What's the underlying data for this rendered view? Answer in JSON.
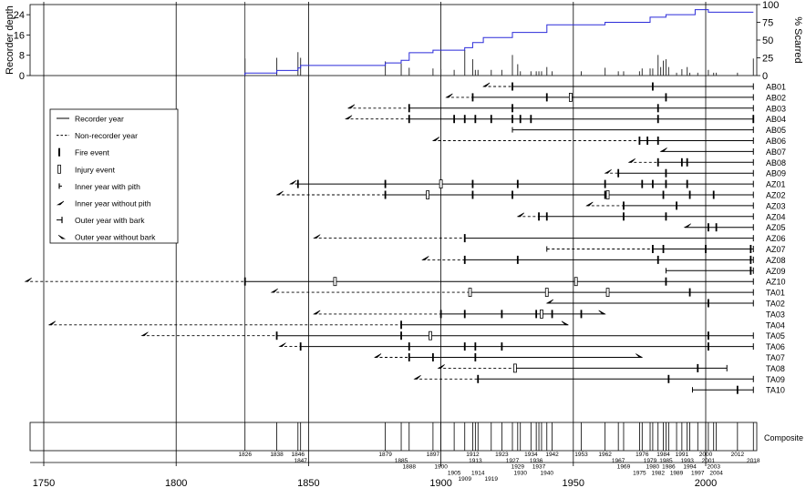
{
  "chart_data": {
    "type": "fire-history",
    "x_range": [
      1743,
      2020
    ],
    "x_ticks": [
      1750,
      1800,
      1850,
      1900,
      1950,
      2000
    ],
    "top_panel": {
      "ylabel_left": "Recorder depth",
      "ylabel_right": "% Scarred",
      "left_ticks": [
        0,
        8,
        16,
        24
      ],
      "left_range": [
        0,
        28
      ],
      "right_ticks": [
        0,
        25,
        50,
        75,
        100
      ],
      "right_range": [
        0,
        100
      ],
      "depth_steps": [
        [
          1826,
          0
        ],
        [
          1826,
          1
        ],
        [
          1838,
          1
        ],
        [
          1838,
          2
        ],
        [
          1846,
          2
        ],
        [
          1846,
          3
        ],
        [
          1847,
          3
        ],
        [
          1847,
          4
        ],
        [
          1879,
          4
        ],
        [
          1879,
          5
        ],
        [
          1885,
          5
        ],
        [
          1885,
          6
        ],
        [
          1888,
          6
        ],
        [
          1888,
          9
        ],
        [
          1897,
          9
        ],
        [
          1897,
          10
        ],
        [
          1909,
          10
        ],
        [
          1909,
          11
        ],
        [
          1912,
          11
        ],
        [
          1912,
          13
        ],
        [
          1916,
          13
        ],
        [
          1916,
          15
        ],
        [
          1927,
          15
        ],
        [
          1927,
          17
        ],
        [
          1940,
          17
        ],
        [
          1940,
          20
        ],
        [
          1962,
          20
        ],
        [
          1962,
          21
        ],
        [
          1979,
          21
        ],
        [
          1979,
          23
        ],
        [
          1985,
          23
        ],
        [
          1985,
          24
        ],
        [
          1996,
          24
        ],
        [
          1996,
          26
        ],
        [
          2001,
          26
        ],
        [
          2001,
          25
        ],
        [
          2018,
          25
        ]
      ],
      "scar_bars": [
        [
          1826,
          24
        ],
        [
          1838,
          25
        ],
        [
          1846,
          33
        ],
        [
          1847,
          25
        ],
        [
          1879,
          20
        ],
        [
          1885,
          17
        ],
        [
          1888,
          11
        ],
        [
          1897,
          10
        ],
        [
          1900,
          9
        ],
        [
          1905,
          8
        ],
        [
          1909,
          36
        ],
        [
          1912,
          23
        ],
        [
          1913,
          8
        ],
        [
          1914,
          8
        ],
        [
          1919,
          8
        ],
        [
          1923,
          8
        ],
        [
          1927,
          29
        ],
        [
          1929,
          16
        ],
        [
          1930,
          6
        ],
        [
          1934,
          6
        ],
        [
          1936,
          6
        ],
        [
          1937,
          6
        ],
        [
          1938,
          6
        ],
        [
          1940,
          12
        ],
        [
          1942,
          6
        ],
        [
          1953,
          6
        ],
        [
          1962,
          11
        ],
        [
          1967,
          6
        ],
        [
          1969,
          6
        ],
        [
          1975,
          6
        ],
        [
          1976,
          10
        ],
        [
          1979,
          10
        ],
        [
          1980,
          10
        ],
        [
          1982,
          29
        ],
        [
          1983,
          12
        ],
        [
          1984,
          21
        ],
        [
          1985,
          23
        ],
        [
          1986,
          12
        ],
        [
          1989,
          4
        ],
        [
          1991,
          9
        ],
        [
          1993,
          12
        ],
        [
          1994,
          4
        ],
        [
          1997,
          4
        ],
        [
          2000,
          23
        ],
        [
          2001,
          8
        ],
        [
          2003,
          4
        ],
        [
          2004,
          4
        ],
        [
          2012,
          4
        ],
        [
          2018,
          24
        ]
      ]
    },
    "legend": [
      {
        "label": "Recorder year",
        "symbol": "solid-line"
      },
      {
        "label": "Non-recorder year",
        "symbol": "dashed-line"
      },
      {
        "label": "Fire event",
        "symbol": "fire-bar"
      },
      {
        "label": "Injury event",
        "symbol": "injury-box"
      },
      {
        "label": "Inner year with pith",
        "symbol": "pith-tick"
      },
      {
        "label": "Inner year without pith",
        "symbol": "inner-arrow"
      },
      {
        "label": "Outer year with bark",
        "symbol": "bark-tick"
      },
      {
        "label": "Outer year without bark",
        "symbol": "outer-arrow"
      }
    ],
    "series": [
      {
        "name": "AB01",
        "first": 1916,
        "first_type": "inner-arrow",
        "rec_start": 1927,
        "last": 2018,
        "last_type": "bark",
        "fires": [
          1927,
          1980
        ],
        "injuries": []
      },
      {
        "name": "AB02",
        "first": 1902,
        "first_type": "inner-arrow",
        "rec_start": 1912,
        "last": 2018,
        "last_type": "bark",
        "fires": [
          1912,
          1940,
          1985
        ],
        "injuries": [
          1949
        ]
      },
      {
        "name": "AB03",
        "first": 1865,
        "first_type": "inner-arrow",
        "rec_start": 1888,
        "last": 2018,
        "last_type": "bark",
        "fires": [
          1888,
          1927,
          1982
        ],
        "injuries": []
      },
      {
        "name": "AB04",
        "first": 1864,
        "first_type": "inner-arrow",
        "rec_start": 1888,
        "last": 2018,
        "last_type": "bark",
        "fires": [
          1888,
          1905,
          1909,
          1913,
          1919,
          1927,
          1930,
          1934,
          1982,
          2018
        ],
        "injuries": []
      },
      {
        "name": "AB05",
        "first": 1927,
        "first_type": "pith",
        "rec_start": 1927,
        "last": 2018,
        "last_type": "bark",
        "fires": [],
        "injuries": []
      },
      {
        "name": "AB06",
        "first": 1897,
        "first_type": "inner-arrow",
        "rec_start": 1975,
        "last": 2018,
        "last_type": "bark",
        "fires": [
          1975,
          1978,
          1982
        ],
        "injuries": []
      },
      {
        "name": "AB07",
        "first": 1983,
        "first_type": "inner-arrow",
        "rec_start": 1983,
        "last": 2018,
        "last_type": "bark",
        "fires": [],
        "injuries": []
      },
      {
        "name": "AB08",
        "first": 1971,
        "first_type": "inner-arrow",
        "rec_start": 1982,
        "last": 2018,
        "last_type": "bark",
        "fires": [
          1982,
          1991,
          1993
        ],
        "injuries": []
      },
      {
        "name": "AB09",
        "first": 1962,
        "first_type": "inner-arrow",
        "rec_start": 1967,
        "last": 2018,
        "last_type": "bark",
        "fires": [
          1967,
          1985
        ],
        "injuries": []
      },
      {
        "name": "AZ01",
        "first": 1843,
        "first_type": "inner-arrow",
        "rec_start": 1846,
        "last": 2018,
        "last_type": "bark",
        "fires": [
          1846,
          1879,
          1912,
          1929,
          1962,
          1976,
          1980,
          1985,
          1993
        ],
        "injuries": [
          1900
        ]
      },
      {
        "name": "AZ02",
        "first": 1838,
        "first_type": "inner-arrow",
        "rec_start": 1879,
        "last": 2018,
        "last_type": "bark",
        "fires": [
          1879,
          1912,
          1927,
          1962,
          1984,
          1994,
          2003
        ],
        "injuries": [
          1895,
          1963
        ]
      },
      {
        "name": "AZ03",
        "first": 1955,
        "first_type": "inner-arrow",
        "rec_start": 1969,
        "last": 2018,
        "last_type": "bark",
        "fires": [
          1969,
          1989
        ],
        "injuries": []
      },
      {
        "name": "AZ04",
        "first": 1929,
        "first_type": "inner-arrow",
        "rec_start": 1937,
        "last": 2018,
        "last_type": "bark",
        "fires": [
          1937,
          1940,
          1969,
          1985
        ],
        "injuries": []
      },
      {
        "name": "AZ05",
        "first": 1992,
        "first_type": "inner-arrow",
        "rec_start": 1992,
        "last": 2018,
        "last_type": "bark",
        "fires": [
          2001,
          2004
        ],
        "injuries": []
      },
      {
        "name": "AZ06",
        "first": 1852,
        "first_type": "inner-arrow",
        "rec_start": 1909,
        "last": 2018,
        "last_type": "bark",
        "fires": [
          1909
        ],
        "injuries": []
      },
      {
        "name": "AZ07",
        "first": 1940,
        "first_type": "pith",
        "rec_start": 1980,
        "last": 2018,
        "last_type": "bark",
        "fires": [
          1980,
          1984,
          2000,
          2017
        ],
        "injuries": []
      },
      {
        "name": "AZ08",
        "first": 1893,
        "first_type": "inner-arrow",
        "rec_start": 1909,
        "last": 2018,
        "last_type": "bark",
        "fires": [
          1909,
          1929,
          1982,
          2017
        ],
        "injuries": []
      },
      {
        "name": "AZ09",
        "first": 1985,
        "first_type": "pith",
        "rec_start": 1985,
        "last": 2018,
        "last_type": "bark",
        "fires": [
          2017
        ],
        "injuries": []
      },
      {
        "name": "AZ10",
        "first": 1743,
        "first_type": "inner-arrow",
        "rec_start": 1826,
        "last": 2018,
        "last_type": "bark",
        "fires": [
          1826,
          1985
        ],
        "injuries": [
          1860,
          1951
        ]
      },
      {
        "name": "TA01",
        "first": 1836,
        "first_type": "inner-arrow",
        "rec_start": 1911,
        "last": 2018,
        "last_type": "bark",
        "fires": [
          1994
        ],
        "injuries": [
          1911,
          1940,
          1963
        ]
      },
      {
        "name": "TA02",
        "first": 1940,
        "first_type": "inner-arrow",
        "rec_start": 1940,
        "last": 2018,
        "last_type": "bark",
        "fires": [
          2001
        ],
        "injuries": []
      },
      {
        "name": "TA03",
        "first": 1852,
        "first_type": "inner-arrow",
        "rec_start": 1900,
        "last": 1962,
        "last_type": "outer-arrow",
        "fires": [
          1900,
          1909,
          1923,
          1936,
          1942,
          1953
        ],
        "injuries": [
          1938
        ]
      },
      {
        "name": "TA04",
        "first": 1752,
        "first_type": "inner-arrow",
        "rec_start": 1885,
        "last": 1948,
        "last_type": "outer-arrow",
        "fires": [
          1885
        ],
        "injuries": []
      },
      {
        "name": "TA05",
        "first": 1787,
        "first_type": "inner-arrow",
        "rec_start": 1838,
        "last": 2018,
        "last_type": "bark",
        "fires": [
          1838,
          1885,
          2001
        ],
        "injuries": [
          1896
        ]
      },
      {
        "name": "TA06",
        "first": 1839,
        "first_type": "inner-arrow",
        "rec_start": 1847,
        "last": 2018,
        "last_type": "bark",
        "fires": [
          1847,
          1888,
          1909,
          1913,
          1923,
          2001
        ],
        "injuries": []
      },
      {
        "name": "TA07",
        "first": 1875,
        "first_type": "inner-arrow",
        "rec_start": 1888,
        "last": 1976,
        "last_type": "outer-arrow",
        "fires": [
          1888,
          1897,
          1913
        ],
        "injuries": []
      },
      {
        "name": "TA08",
        "first": 1899,
        "first_type": "inner-arrow",
        "rec_start": 1928,
        "last": 2008,
        "last_type": "bark",
        "fires": [
          1997
        ],
        "injuries": [
          1928
        ]
      },
      {
        "name": "TA09",
        "first": 1890,
        "first_type": "inner-arrow",
        "rec_start": 1914,
        "last": 2018,
        "last_type": "bark",
        "fires": [
          1914,
          1986
        ],
        "injuries": []
      },
      {
        "name": "TA10",
        "first": 1995,
        "first_type": "pith",
        "rec_start": 1995,
        "last": 2018,
        "last_type": "bark",
        "fires": [
          2012
        ],
        "injuries": []
      }
    ],
    "composite": {
      "label": "Composite",
      "years": [
        1826,
        1838,
        1846,
        1847,
        1879,
        1885,
        1888,
        1897,
        1900,
        1905,
        1909,
        1912,
        1913,
        1914,
        1919,
        1923,
        1927,
        1929,
        1930,
        1934,
        1936,
        1937,
        1938,
        1940,
        1942,
        1953,
        1962,
        1967,
        1969,
        1975,
        1976,
        1979,
        1980,
        1982,
        1984,
        1985,
        1986,
        1989,
        1991,
        1993,
        1994,
        1997,
        2000,
        2001,
        2003,
        2004,
        2012,
        2018
      ],
      "label_rows": [
        [
          1826,
          1838,
          1846,
          1879,
          1897,
          1912,
          1923,
          1934,
          1942,
          1953,
          1962,
          1976,
          1984,
          1991,
          2000,
          2012
        ],
        [
          1847,
          1885,
          1913,
          1927,
          1936,
          1967,
          1979,
          1985,
          1993,
          2001,
          2018
        ],
        [
          1888,
          1900,
          1929,
          1937,
          1969,
          1980,
          1986,
          1994,
          2003
        ],
        [
          1905,
          1914,
          1930,
          1940,
          1975,
          1982,
          1989,
          1997,
          2004
        ],
        [
          1909,
          1919
        ]
      ]
    }
  }
}
